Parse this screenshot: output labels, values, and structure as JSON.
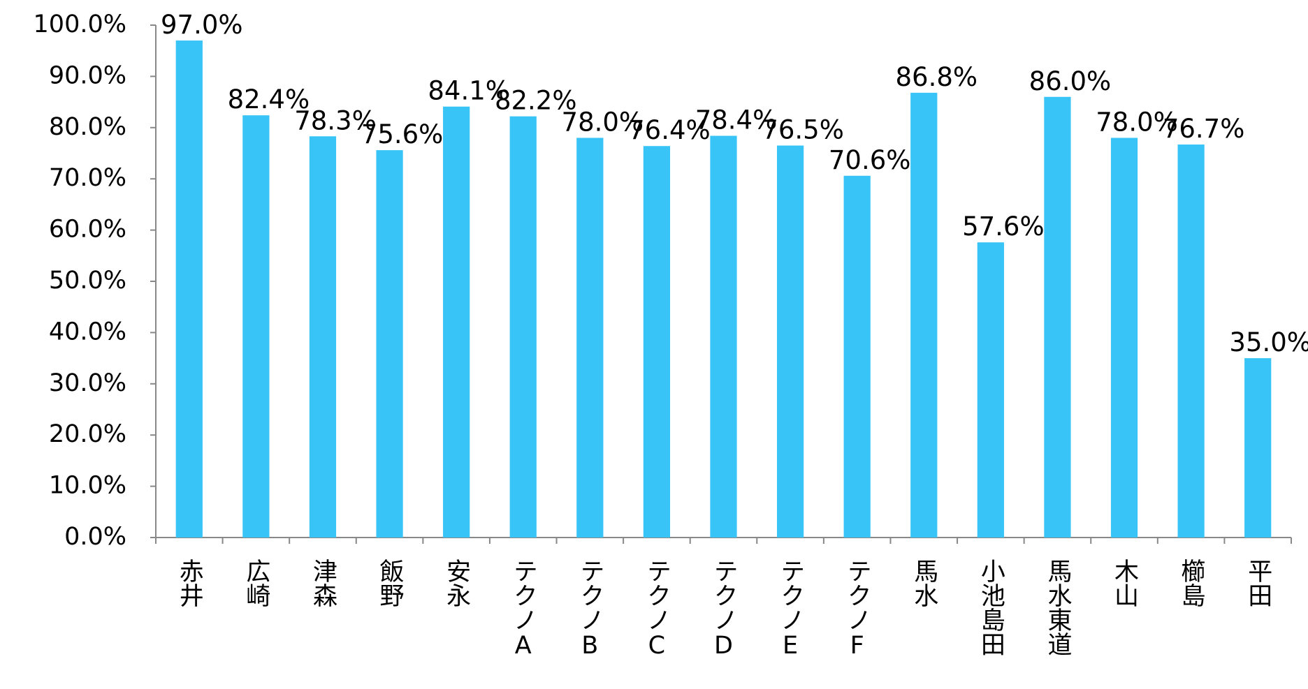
{
  "chart_data": {
    "type": "bar",
    "categories": [
      "赤井",
      "広崎",
      "津森",
      "飯野",
      "安永",
      "テクノA",
      "テクノB",
      "テクノC",
      "テクノD",
      "テクノE",
      "テクノF",
      "馬水",
      "小池島田",
      "馬水東道",
      "木山",
      "櫛島",
      "平田"
    ],
    "values": [
      97.0,
      82.4,
      78.3,
      75.6,
      84.1,
      82.2,
      78.0,
      76.4,
      78.4,
      76.5,
      70.6,
      86.8,
      57.6,
      86.0,
      78.0,
      76.7,
      35.0
    ],
    "value_labels": [
      "97.0%",
      "82.4%",
      "78.3%",
      "75.6%",
      "84.1%",
      "82.2%",
      "78.0%",
      "76.4%",
      "78.4%",
      "76.5%",
      "70.6%",
      "86.8%",
      "57.6%",
      "86.0%",
      "78.0%",
      "76.7%",
      "35.0%"
    ],
    "color": "#38c4f6",
    "ylim": [
      0,
      100
    ],
    "yticks": [
      {
        "value": 0,
        "label": "0.0%"
      },
      {
        "value": 10,
        "label": "10.0%"
      },
      {
        "value": 20,
        "label": "20.0%"
      },
      {
        "value": 30,
        "label": "30.0%"
      },
      {
        "value": 40,
        "label": "40.0%"
      },
      {
        "value": 50,
        "label": "50.0%"
      },
      {
        "value": 60,
        "label": "60.0%"
      },
      {
        "value": 70,
        "label": "70.0%"
      },
      {
        "value": 80,
        "label": "80.0%"
      },
      {
        "value": 90,
        "label": "90.0%"
      },
      {
        "value": 100,
        "label": "100.0%"
      }
    ],
    "grid": false
  }
}
